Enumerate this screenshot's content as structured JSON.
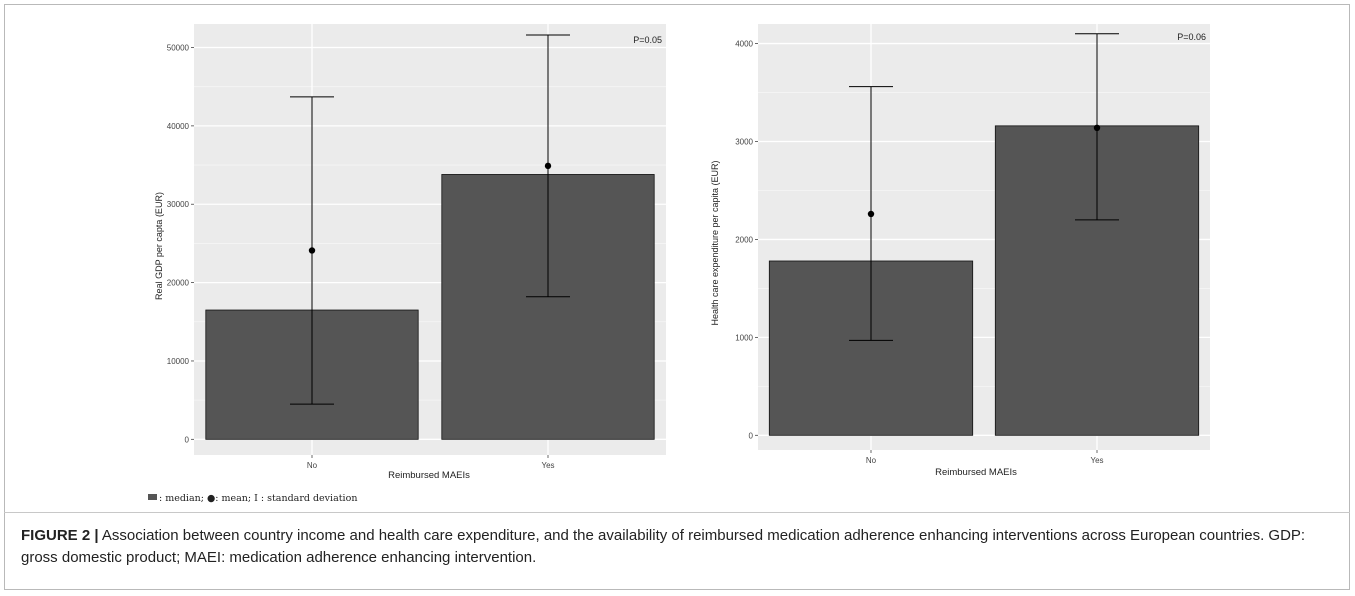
{
  "chart_data": [
    {
      "type": "bar",
      "categories": [
        "No",
        "Yes"
      ],
      "values": [
        16500,
        33800
      ],
      "means": [
        24100,
        34900
      ],
      "error_low": [
        4500,
        18200
      ],
      "error_high": [
        43700,
        51600
      ],
      "title": "",
      "xlabel": "Reimbursed MAEIs",
      "ylabel": "Real GDP per capta (EUR)",
      "yticks": [
        0,
        10000,
        20000,
        30000,
        40000,
        50000
      ],
      "ytick_labels": [
        "0",
        "10000",
        "20000",
        "30000",
        "40000",
        "50000"
      ],
      "ylim": [
        -2000,
        53000
      ],
      "annotation": "P=0.05",
      "grid": true,
      "bar_color": "#555555",
      "panel_bg": "#ebebeb"
    },
    {
      "type": "bar",
      "categories": [
        "No",
        "Yes"
      ],
      "values": [
        1780,
        3160
      ],
      "means": [
        2260,
        3140
      ],
      "error_low": [
        970,
        2200
      ],
      "error_high": [
        3560,
        4100
      ],
      "title": "",
      "xlabel": "Reimbursed MAEIs",
      "ylabel": "Health care expenditure per capita (EUR)",
      "yticks": [
        0,
        1000,
        2000,
        3000,
        4000
      ],
      "ytick_labels": [
        "0",
        "1000",
        "2000",
        "3000",
        "4000"
      ],
      "ylim": [
        -150,
        4200
      ],
      "annotation": "P=0.06",
      "grid": true,
      "bar_color": "#555555",
      "panel_bg": "#ebebeb"
    }
  ],
  "legend_note": {
    "text": ": median; ●: mean; Ⅰ : standard deviation"
  },
  "caption": {
    "label": "FIGURE 2 |",
    "text": " Association between country income and health care expenditure, and the availability of reimbursed medication adherence enhancing interventions across European countries. GDP: gross domestic product; MAEI: medication adherence enhancing intervention."
  }
}
